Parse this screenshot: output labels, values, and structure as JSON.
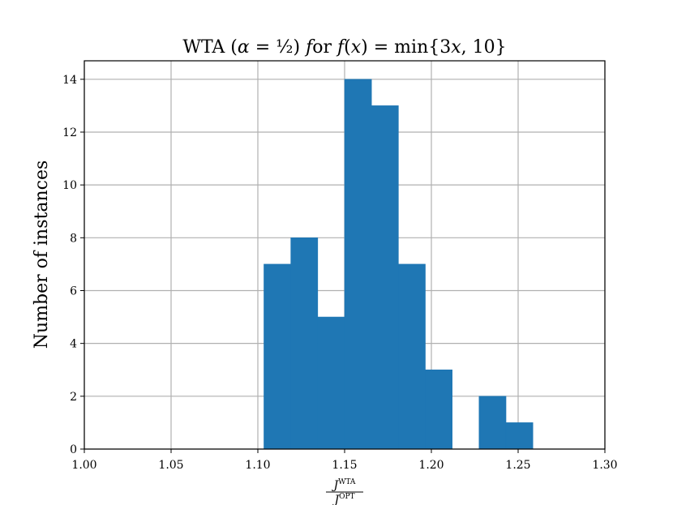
{
  "chart_data": {
    "type": "bar",
    "title": "WTA (α = ½) for f(x) = min{3x, 10}",
    "xlabel": "J^WTA / J^OPT",
    "ylabel": "Number of instances",
    "xlim": [
      1.0,
      1.3
    ],
    "ylim": [
      0,
      14.7
    ],
    "grid": true,
    "color": "#1f77b4",
    "xticks": [
      "1.00",
      "1.05",
      "1.10",
      "1.15",
      "1.20",
      "1.25",
      "1.30"
    ],
    "yticks": [
      "0",
      "2",
      "4",
      "6",
      "8",
      "10",
      "12",
      "14"
    ],
    "bins": [
      {
        "x0": 1.1035,
        "x1": 1.119,
        "count": 7
      },
      {
        "x0": 1.119,
        "x1": 1.1345,
        "count": 8
      },
      {
        "x0": 1.1345,
        "x1": 1.15,
        "count": 5
      },
      {
        "x0": 1.15,
        "x1": 1.1655,
        "count": 14
      },
      {
        "x0": 1.1655,
        "x1": 1.181,
        "count": 13
      },
      {
        "x0": 1.181,
        "x1": 1.1965,
        "count": 7
      },
      {
        "x0": 1.1965,
        "x1": 1.212,
        "count": 3
      },
      {
        "x0": 1.212,
        "x1": 1.2275,
        "count": 0
      },
      {
        "x0": 1.2275,
        "x1": 1.243,
        "count": 2
      },
      {
        "x0": 1.243,
        "x1": 1.2585,
        "count": 1
      }
    ]
  }
}
